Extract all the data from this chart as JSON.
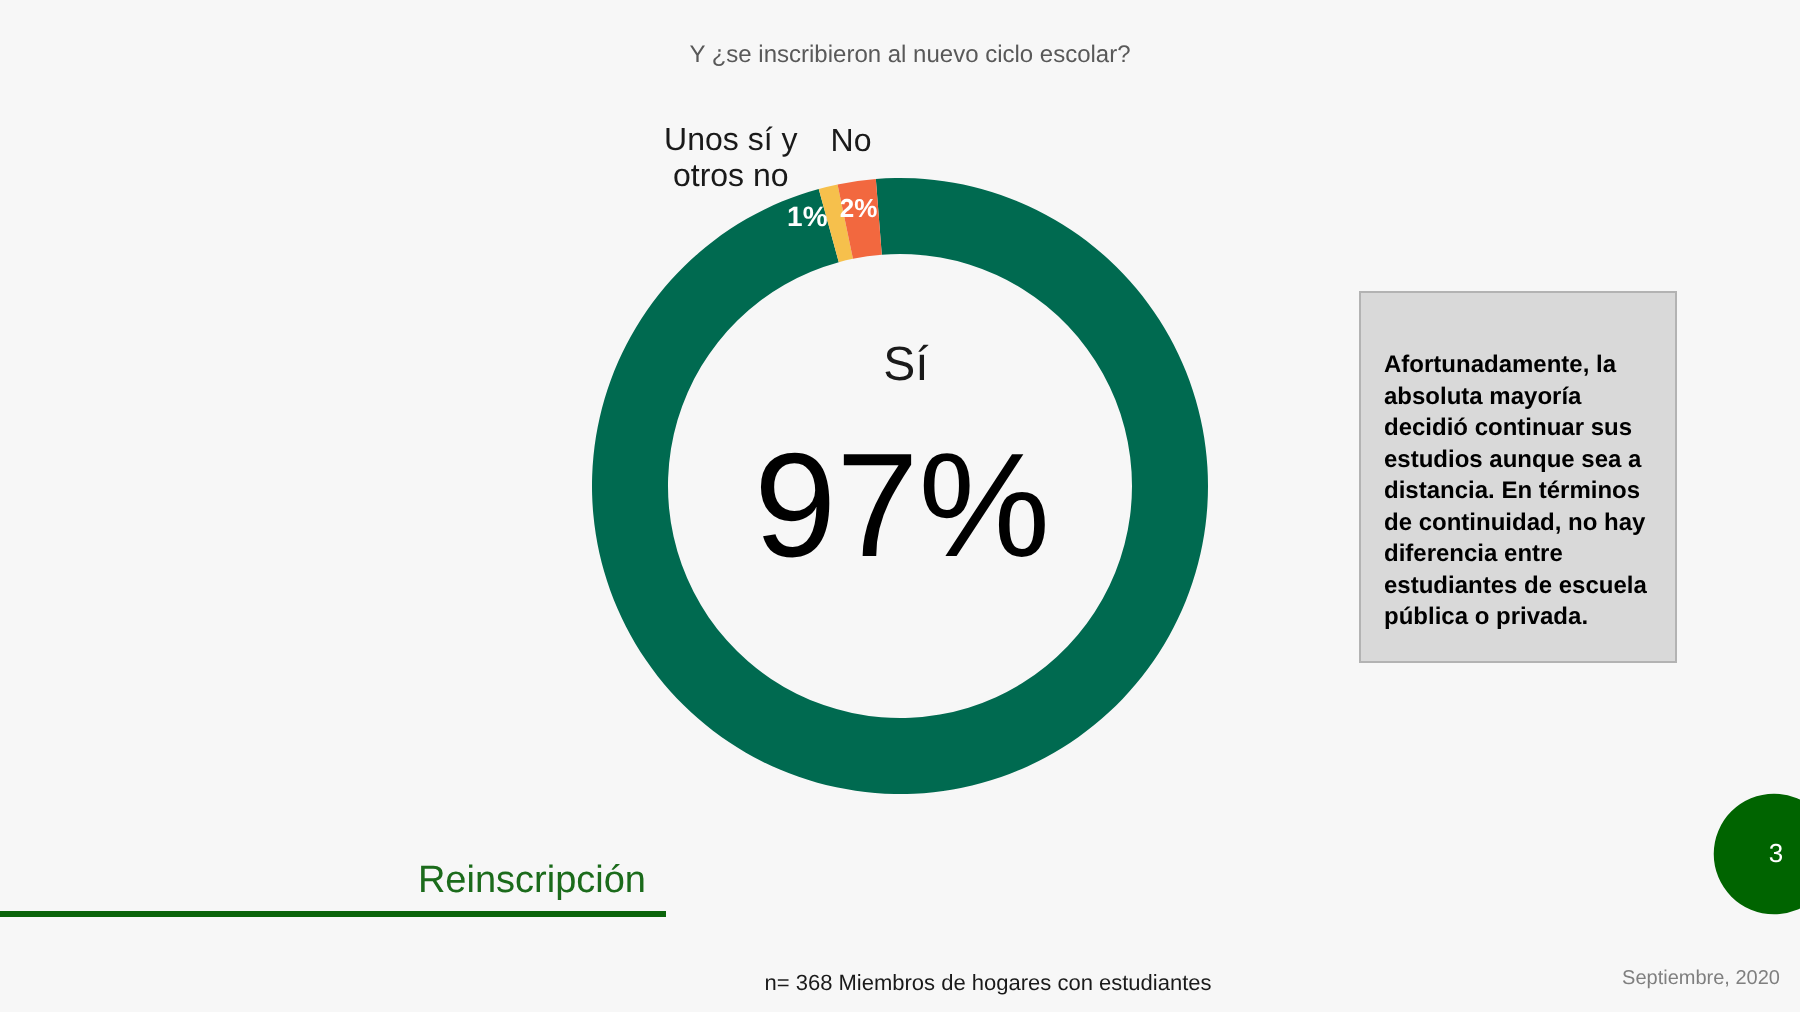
{
  "chart_data": {
    "type": "donut",
    "title": "Y ¿se inscribieron al nuevo ciclo escolar?",
    "categories": [
      "Sí",
      "Unos sí y otros no",
      "No"
    ],
    "values": [
      97,
      1,
      2
    ],
    "colors": [
      "#006a50",
      "#f6c04c",
      "#f2683f"
    ],
    "value_labels": [
      "97%",
      "1%",
      "2%"
    ],
    "legend": false,
    "annotations": [
      "Afortunadamente, la absoluta mayoría decidió continuar sus estudios aunque sea a distancia. En términos de continuidad, no hay diferencia entre estudiantes de escuela pública o privada.",
      "Reinscripción",
      "n= 368 Miembros de hogares con estudiantes",
      "Septiembre, 2020",
      "3"
    ]
  }
}
